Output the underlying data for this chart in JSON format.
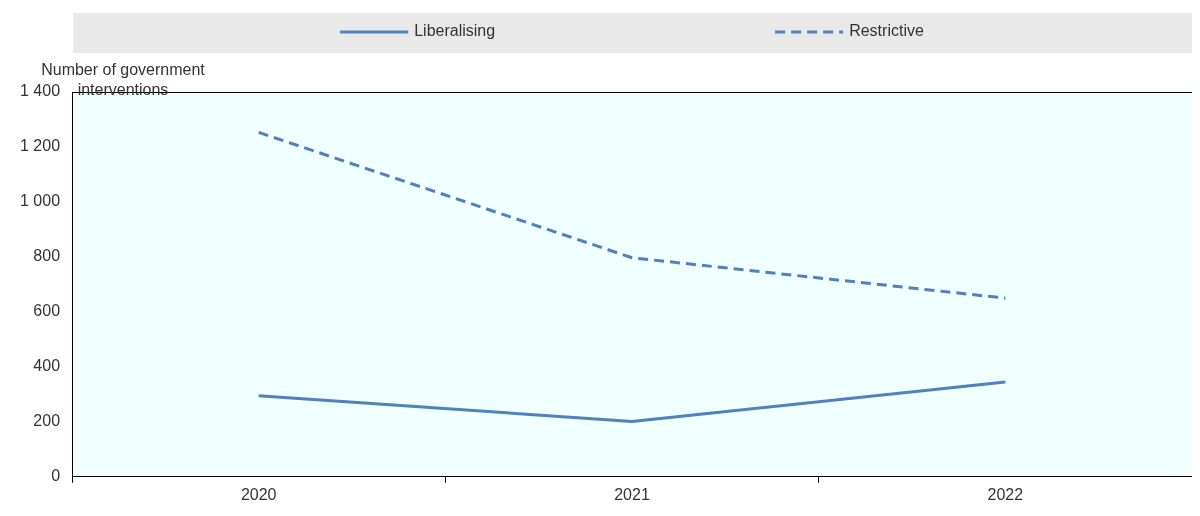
{
  "chart_data": {
    "type": "line",
    "ylabel": "Number of government interventions",
    "categories": [
      "2020",
      "2021",
      "2022"
    ],
    "series": [
      {
        "name": "Liberalising",
        "color": "#4f81bd",
        "values": [
          295,
          201,
          345
        ],
        "line_style": "solid"
      },
      {
        "name": "Restrictive",
        "color": "#4f81bd",
        "values": [
          1253,
          797,
          650
        ],
        "line_style": "dashed"
      }
    ],
    "ylim": [
      0,
      1400
    ],
    "yticks": [
      0,
      200,
      400,
      600,
      800,
      {
        "value": 1000,
        "label": "1 000"
      },
      {
        "value": 1200,
        "label": "1 200"
      },
      {
        "value": 1400,
        "label": "1 400"
      }
    ],
    "grid": false,
    "legend": "top",
    "marker": "none"
  }
}
